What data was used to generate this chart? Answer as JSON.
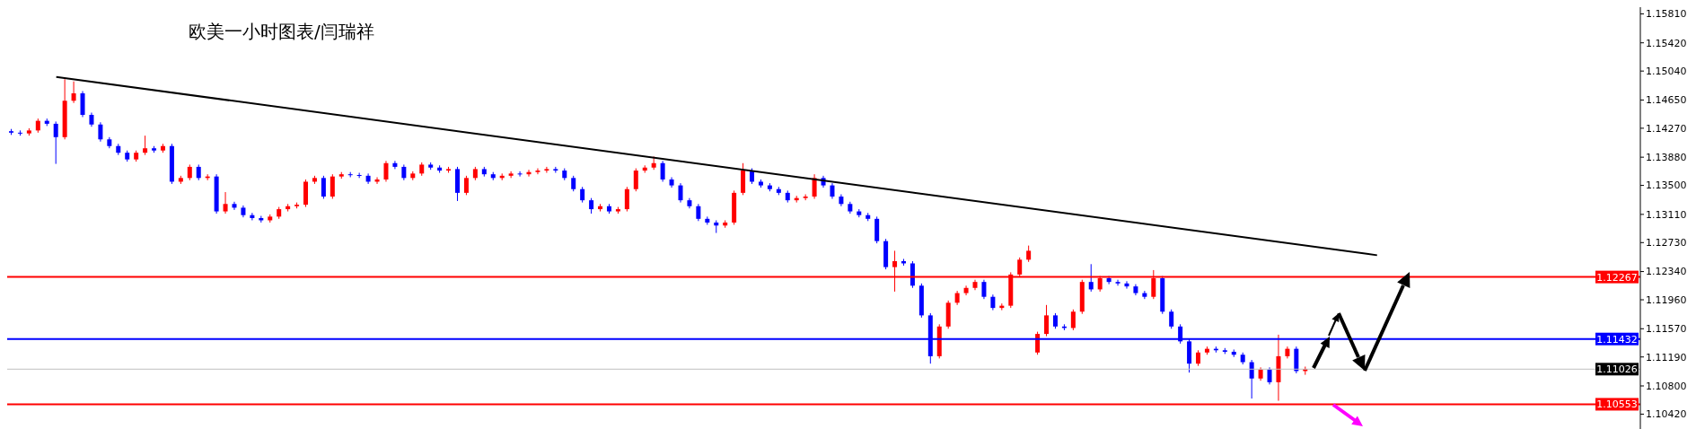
{
  "chart_data": {
    "type": "candlestick",
    "title": "欧美一小时图表/闫瑞祥",
    "categories": [
      null,
      null,
      null,
      null,
      null,
      null,
      null,
      null,
      null,
      null,
      null,
      null,
      null,
      null,
      null,
      null,
      null,
      null,
      null,
      null,
      null,
      null,
      null,
      null,
      null,
      null,
      null,
      null,
      null,
      null,
      null,
      null,
      null,
      null,
      null,
      null,
      null,
      null,
      null,
      null,
      null,
      null,
      null,
      null,
      null,
      null,
      null,
      null,
      null,
      null,
      null,
      null,
      null,
      null,
      null,
      null,
      null,
      null,
      null,
      null,
      null,
      null,
      null,
      null,
      null,
      null,
      null,
      null,
      null,
      null,
      null,
      null,
      null,
      null,
      null,
      null,
      null,
      null,
      null,
      null,
      null,
      null,
      null,
      null,
      null,
      null,
      null,
      null,
      null,
      null,
      null,
      null,
      null,
      null,
      null,
      null,
      null,
      null,
      null,
      null,
      null,
      null,
      null,
      null,
      null,
      null,
      null,
      null,
      null,
      null,
      null,
      null,
      null,
      null,
      null,
      null,
      null,
      null,
      null,
      null,
      null,
      null,
      null,
      null,
      null,
      null,
      null,
      null,
      null,
      null,
      null,
      null,
      null,
      null,
      null,
      null,
      null,
      null,
      null,
      null,
      null,
      null,
      null,
      null,
      null,
      null,
      null,
      null,
      null,
      null,
      null,
      null,
      null,
      null,
      null,
      null,
      null,
      null,
      null,
      null,
      null,
      null,
      null,
      null,
      null,
      null,
      null,
      null,
      null,
      null,
      null,
      null,
      null,
      null,
      null,
      null,
      null,
      null,
      null,
      null,
      null,
      null,
      null
    ],
    "ohlc": [
      [
        1.1423,
        1.1426,
        1.1418,
        1.1421
      ],
      [
        1.1421,
        1.1424,
        1.1417,
        1.142
      ],
      [
        1.142,
        1.1427,
        1.1417,
        1.1424
      ],
      [
        1.1424,
        1.144,
        1.1421,
        1.1437
      ],
      [
        1.1437,
        1.144,
        1.143,
        1.1433
      ],
      [
        1.1433,
        1.1436,
        1.1379,
        1.1415
      ],
      [
        1.1415,
        1.1493,
        1.1412,
        1.1464
      ],
      [
        1.1464,
        1.149,
        1.1461,
        1.1474
      ],
      [
        1.1474,
        1.1477,
        1.1442,
        1.1445
      ],
      [
        1.1445,
        1.1448,
        1.1429,
        1.1432
      ],
      [
        1.1432,
        1.1435,
        1.1409,
        1.1412
      ],
      [
        1.1412,
        1.1415,
        1.14,
        1.1403
      ],
      [
        1.1403,
        1.1406,
        1.1391,
        1.1394
      ],
      [
        1.1394,
        1.1397,
        1.1382,
        1.1385
      ],
      [
        1.1385,
        1.1397,
        1.1382,
        1.1394
      ],
      [
        1.1394,
        1.1417,
        1.1391,
        1.14
      ],
      [
        1.14,
        1.1403,
        1.1394,
        1.1397
      ],
      [
        1.1397,
        1.1406,
        1.1394,
        1.1403
      ],
      [
        1.1403,
        1.1406,
        1.1352,
        1.1355
      ],
      [
        1.1355,
        1.1363,
        1.1352,
        1.136
      ],
      [
        1.136,
        1.1378,
        1.1357,
        1.1375
      ],
      [
        1.1375,
        1.1378,
        1.1357,
        1.136
      ],
      [
        1.136,
        1.1365,
        1.1357,
        1.1362
      ],
      [
        1.1362,
        1.1365,
        1.1312,
        1.1315
      ],
      [
        1.1315,
        1.1341,
        1.1312,
        1.1325
      ],
      [
        1.1325,
        1.1328,
        1.1317,
        1.132
      ],
      [
        1.132,
        1.1323,
        1.1307,
        1.131
      ],
      [
        1.131,
        1.1313,
        1.1303,
        1.1306
      ],
      [
        1.1306,
        1.1309,
        1.13,
        1.1303
      ],
      [
        1.1303,
        1.1311,
        1.13,
        1.1308
      ],
      [
        1.1308,
        1.1321,
        1.1305,
        1.1318
      ],
      [
        1.1318,
        1.1325,
        1.1315,
        1.1322
      ],
      [
        1.1322,
        1.1327,
        1.1319,
        1.1324
      ],
      [
        1.1324,
        1.1358,
        1.1321,
        1.1355
      ],
      [
        1.1355,
        1.1363,
        1.1352,
        1.136
      ],
      [
        1.136,
        1.1363,
        1.1332,
        1.1335
      ],
      [
        1.1335,
        1.1365,
        1.1332,
        1.1362
      ],
      [
        1.1362,
        1.1368,
        1.1359,
        1.1365
      ],
      [
        1.1365,
        1.1368,
        1.1361,
        1.1364
      ],
      [
        1.1364,
        1.1367,
        1.136,
        1.1363
      ],
      [
        1.1363,
        1.1366,
        1.1352,
        1.1355
      ],
      [
        1.1355,
        1.1361,
        1.1352,
        1.1358
      ],
      [
        1.1358,
        1.1383,
        1.1355,
        1.138
      ],
      [
        1.138,
        1.1383,
        1.1372,
        1.1375
      ],
      [
        1.1375,
        1.1378,
        1.1357,
        1.136
      ],
      [
        1.136,
        1.1369,
        1.1357,
        1.1366
      ],
      [
        1.1366,
        1.1381,
        1.1363,
        1.1378
      ],
      [
        1.1378,
        1.1381,
        1.1371,
        1.1374
      ],
      [
        1.1374,
        1.1377,
        1.1367,
        1.137
      ],
      [
        1.137,
        1.1375,
        1.1367,
        1.1372
      ],
      [
        1.1372,
        1.1375,
        1.1329,
        1.134
      ],
      [
        1.134,
        1.1363,
        1.1337,
        1.136
      ],
      [
        1.136,
        1.1375,
        1.1357,
        1.1372
      ],
      [
        1.1372,
        1.1375,
        1.1362,
        1.1365
      ],
      [
        1.1365,
        1.1368,
        1.1357,
        1.136
      ],
      [
        1.136,
        1.1366,
        1.1357,
        1.1363
      ],
      [
        1.1363,
        1.1369,
        1.136,
        1.1366
      ],
      [
        1.1366,
        1.1369,
        1.1362,
        1.1365
      ],
      [
        1.1365,
        1.1371,
        1.1362,
        1.1368
      ],
      [
        1.1368,
        1.1373,
        1.1365,
        1.137
      ],
      [
        1.137,
        1.1375,
        1.1367,
        1.1372
      ],
      [
        1.1372,
        1.1375,
        1.1367,
        1.137
      ],
      [
        1.137,
        1.1373,
        1.1357,
        1.136
      ],
      [
        1.136,
        1.1363,
        1.1342,
        1.1345
      ],
      [
        1.1345,
        1.1348,
        1.1327,
        1.133
      ],
      [
        1.133,
        1.1333,
        1.1312,
        1.1318
      ],
      [
        1.1318,
        1.1325,
        1.1315,
        1.1322
      ],
      [
        1.1322,
        1.1325,
        1.1312,
        1.1315
      ],
      [
        1.1315,
        1.1321,
        1.1312,
        1.1318
      ],
      [
        1.1318,
        1.1348,
        1.1315,
        1.1345
      ],
      [
        1.1345,
        1.1373,
        1.1342,
        1.137
      ],
      [
        1.137,
        1.1377,
        1.1367,
        1.1374
      ],
      [
        1.1374,
        1.1389,
        1.1371,
        1.138
      ],
      [
        1.138,
        1.1383,
        1.1355,
        1.1358
      ],
      [
        1.1358,
        1.1361,
        1.1347,
        1.135
      ],
      [
        1.135,
        1.1353,
        1.1327,
        1.133
      ],
      [
        1.133,
        1.1333,
        1.1319,
        1.1322
      ],
      [
        1.1322,
        1.1325,
        1.1302,
        1.1305
      ],
      [
        1.1305,
        1.1308,
        1.1297,
        1.13
      ],
      [
        1.13,
        1.1303,
        1.1286,
        1.1296
      ],
      [
        1.1296,
        1.1303,
        1.1293,
        1.13
      ],
      [
        1.13,
        1.1343,
        1.1297,
        1.134
      ],
      [
        1.134,
        1.138,
        1.1337,
        1.137
      ],
      [
        1.137,
        1.1373,
        1.1352,
        1.1355
      ],
      [
        1.1355,
        1.1358,
        1.1347,
        1.135
      ],
      [
        1.135,
        1.1353,
        1.1342,
        1.1345
      ],
      [
        1.1345,
        1.1348,
        1.1337,
        1.134
      ],
      [
        1.134,
        1.1343,
        1.1327,
        1.133
      ],
      [
        1.133,
        1.1336,
        1.1327,
        1.1333
      ],
      [
        1.1333,
        1.1338,
        1.133,
        1.1335
      ],
      [
        1.1335,
        1.1365,
        1.1332,
        1.136
      ],
      [
        1.136,
        1.1363,
        1.1347,
        1.135
      ],
      [
        1.135,
        1.1353,
        1.1332,
        1.1335
      ],
      [
        1.1335,
        1.1338,
        1.1322,
        1.1325
      ],
      [
        1.1325,
        1.1328,
        1.1312,
        1.1315
      ],
      [
        1.1315,
        1.1318,
        1.1307,
        1.131
      ],
      [
        1.131,
        1.1313,
        1.1302,
        1.1305
      ],
      [
        1.1305,
        1.1308,
        1.1272,
        1.1275
      ],
      [
        1.1275,
        1.1278,
        1.1237,
        1.124
      ],
      [
        1.124,
        1.1262,
        1.1207,
        1.1248
      ],
      [
        1.1248,
        1.1251,
        1.1242,
        1.1245
      ],
      [
        1.1245,
        1.1248,
        1.1212,
        1.1215
      ],
      [
        1.1215,
        1.1218,
        1.1172,
        1.1175
      ],
      [
        1.1175,
        1.1178,
        1.111,
        1.112
      ],
      [
        1.112,
        1.1163,
        1.1117,
        1.116
      ],
      [
        1.116,
        1.1195,
        1.1157,
        1.1192
      ],
      [
        1.1192,
        1.1208,
        1.1189,
        1.1205
      ],
      [
        1.1205,
        1.1215,
        1.1202,
        1.1212
      ],
      [
        1.1212,
        1.1223,
        1.1209,
        1.122
      ],
      [
        1.122,
        1.1223,
        1.1197,
        1.12
      ],
      [
        1.12,
        1.1203,
        1.1182,
        1.1185
      ],
      [
        1.1185,
        1.1191,
        1.1182,
        1.1188
      ],
      [
        1.1188,
        1.1233,
        1.1185,
        1.123
      ],
      [
        1.123,
        1.1253,
        1.1227,
        1.125
      ],
      [
        1.125,
        1.1269,
        1.1247,
        1.1262
      ],
      [
        1.1125,
        1.1153,
        1.1122,
        1.115
      ],
      [
        1.115,
        1.1189,
        1.1147,
        1.1175
      ],
      [
        1.1175,
        1.1178,
        1.1157,
        1.116
      ],
      [
        1.116,
        1.1163,
        1.1155,
        1.1158
      ],
      [
        1.1158,
        1.1183,
        1.1155,
        1.118
      ],
      [
        1.118,
        1.1223,
        1.1177,
        1.122
      ],
      [
        1.122,
        1.1244,
        1.1207,
        1.121
      ],
      [
        1.121,
        1.1228,
        1.1207,
        1.1225
      ],
      [
        1.1225,
        1.1228,
        1.1217,
        1.122
      ],
      [
        1.122,
        1.1223,
        1.1215,
        1.1218
      ],
      [
        1.1218,
        1.1221,
        1.1211,
        1.1214
      ],
      [
        1.1214,
        1.1217,
        1.1202,
        1.1205
      ],
      [
        1.1205,
        1.1208,
        1.1197,
        1.12
      ],
      [
        1.12,
        1.1236,
        1.1197,
        1.1225
      ],
      [
        1.1225,
        1.1228,
        1.1177,
        1.118
      ],
      [
        1.118,
        1.1183,
        1.1157,
        1.116
      ],
      [
        1.116,
        1.1163,
        1.1137,
        1.114
      ],
      [
        1.114,
        1.1143,
        1.1098,
        1.111
      ],
      [
        1.111,
        1.1128,
        1.1107,
        1.1125
      ],
      [
        1.1125,
        1.1133,
        1.1122,
        1.113
      ],
      [
        1.113,
        1.1133,
        1.1125,
        1.1128
      ],
      [
        1.1128,
        1.1131,
        1.1123,
        1.1126
      ],
      [
        1.1126,
        1.1129,
        1.1119,
        1.1122
      ],
      [
        1.1122,
        1.1125,
        1.1109,
        1.1112
      ],
      [
        1.1112,
        1.1115,
        1.1063,
        1.109
      ],
      [
        1.109,
        1.1105,
        1.1087,
        1.1102
      ],
      [
        1.1102,
        1.1105,
        1.1082,
        1.1085
      ],
      [
        1.1085,
        1.1149,
        1.106,
        1.112
      ],
      [
        1.112,
        1.1133,
        1.1117,
        1.113
      ],
      [
        1.113,
        1.1133,
        1.1097,
        1.11
      ],
      [
        1.11,
        1.1106,
        1.1095,
        1.1103
      ],
      null,
      null,
      null,
      null,
      null,
      null,
      null,
      null,
      null,
      null,
      null,
      null,
      null,
      null,
      null,
      null,
      null,
      null,
      null,
      null,
      null,
      null,
      null,
      null,
      null,
      null,
      null,
      null,
      null,
      null,
      null,
      null,
      null,
      null,
      null,
      null,
      null
    ],
    "series": [
      {
        "type": "line",
        "color": "#000000",
        "values": [
          null,
          null,
          null,
          null,
          null,
          1.1496,
          null,
          null,
          null,
          null,
          null,
          null,
          null,
          null,
          null,
          null,
          null,
          null,
          null,
          null,
          null,
          null,
          null,
          null,
          null,
          null,
          null,
          null,
          null,
          null,
          null,
          null,
          null,
          null,
          null,
          null,
          null,
          null,
          null,
          null,
          null,
          null,
          null,
          null,
          null,
          null,
          null,
          null,
          null,
          null,
          null,
          null,
          null,
          null,
          null,
          null,
          null,
          null,
          null,
          null,
          null,
          null,
          null,
          null,
          null,
          null,
          null,
          null,
          null,
          null,
          null,
          null,
          null,
          null,
          null,
          null,
          null,
          null,
          null,
          null,
          null,
          null,
          null,
          null,
          null,
          null,
          null,
          null,
          null,
          null,
          null,
          null,
          null,
          null,
          null,
          null,
          null,
          null,
          null,
          null,
          null,
          null,
          null,
          null,
          null,
          null,
          null,
          null,
          null,
          null,
          null,
          null,
          null,
          null,
          null,
          null,
          null,
          null,
          null,
          null,
          null,
          null,
          null,
          null,
          null,
          null,
          null,
          null,
          null,
          null,
          null,
          null,
          null,
          null,
          null,
          null,
          null,
          null,
          null,
          null,
          null,
          null,
          null,
          null,
          null,
          null,
          null,
          null,
          null,
          null,
          null,
          null,
          null,
          1.1256,
          null,
          null,
          null,
          null,
          null,
          null,
          null,
          null,
          null,
          null,
          null,
          null,
          null,
          null,
          null,
          null,
          null,
          null,
          null,
          null,
          null,
          null,
          null,
          null,
          null,
          null,
          null,
          null,
          null
        ]
      }
    ],
    "ylim": [
      1.1022,
      1.159
    ],
    "yticks": [
      {
        "value": 1.1581,
        "label": "1.15810"
      },
      {
        "value": 1.1542,
        "label": "1.15420"
      },
      {
        "value": 1.1504,
        "label": "1.15040"
      },
      {
        "value": 1.1465,
        "label": "1.14650"
      },
      {
        "value": 1.1427,
        "label": "1.14270"
      },
      {
        "value": 1.1388,
        "label": "1.13880"
      },
      {
        "value": 1.135,
        "label": "1.13500"
      },
      {
        "value": 1.1311,
        "label": "1.13110"
      },
      {
        "value": 1.1273,
        "label": "1.12730"
      },
      {
        "value": 1.1234,
        "label": "1.12340"
      },
      {
        "value": 1.1196,
        "label": "1.11960"
      },
      {
        "value": 1.1157,
        "label": "1.11570"
      },
      {
        "value": 1.1119,
        "label": "1.11190"
      },
      {
        "value": 1.108,
        "label": "1.10800"
      },
      {
        "value": 1.1042,
        "label": "1.10420"
      }
    ],
    "ref_lines": [
      {
        "axis": "y",
        "value": 1.12267,
        "label": "1.12267",
        "color": "#ff0000"
      },
      {
        "axis": "y",
        "value": 1.11432,
        "label": "1.11432",
        "color": "#0000ff"
      },
      {
        "axis": "y",
        "value": 1.11026,
        "label": "1.11026",
        "color": "#c0c0c0"
      },
      {
        "axis": "y",
        "value": 1.10553,
        "label": "1.10553",
        "color": "#ff0000"
      }
    ],
    "tick_labels": "y"
  }
}
